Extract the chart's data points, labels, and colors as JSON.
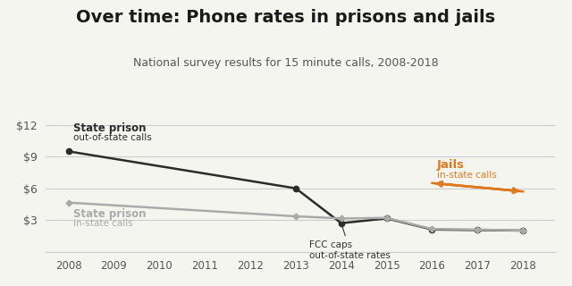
{
  "title": "Over time: Phone rates in prisons and jails",
  "subtitle": "National survey results for 15 minute calls, 2008-2018",
  "title_fontsize": 14,
  "subtitle_fontsize": 9,
  "prison_out_years": [
    2008,
    2013,
    2014,
    2015,
    2016,
    2017,
    2018
  ],
  "prison_out_values": [
    9.5,
    6.0,
    2.7,
    3.15,
    2.1,
    2.05,
    2.0
  ],
  "prison_in_years": [
    2008,
    2013,
    2014,
    2015,
    2016,
    2017,
    2018
  ],
  "prison_in_values": [
    4.65,
    3.35,
    3.15,
    3.2,
    2.15,
    2.1,
    2.0
  ],
  "jail_in_years": [
    2016,
    2018
  ],
  "jail_in_values": [
    6.5,
    5.7
  ],
  "prison_out_color": "#2b2b2b",
  "prison_in_color": "#aaaaaa",
  "jail_in_color": "#e07820",
  "ylim": [
    0,
    13
  ],
  "yticks": [
    0,
    3,
    6,
    9,
    12
  ],
  "ytick_labels": [
    "",
    "$3",
    "$6",
    "$9",
    "$12"
  ],
  "xlim": [
    2007.5,
    2018.7
  ],
  "xticks": [
    2008,
    2009,
    2010,
    2011,
    2012,
    2013,
    2014,
    2015,
    2016,
    2017,
    2018
  ],
  "bg_color": "#f5f5f0",
  "grid_color": "#cccccc"
}
